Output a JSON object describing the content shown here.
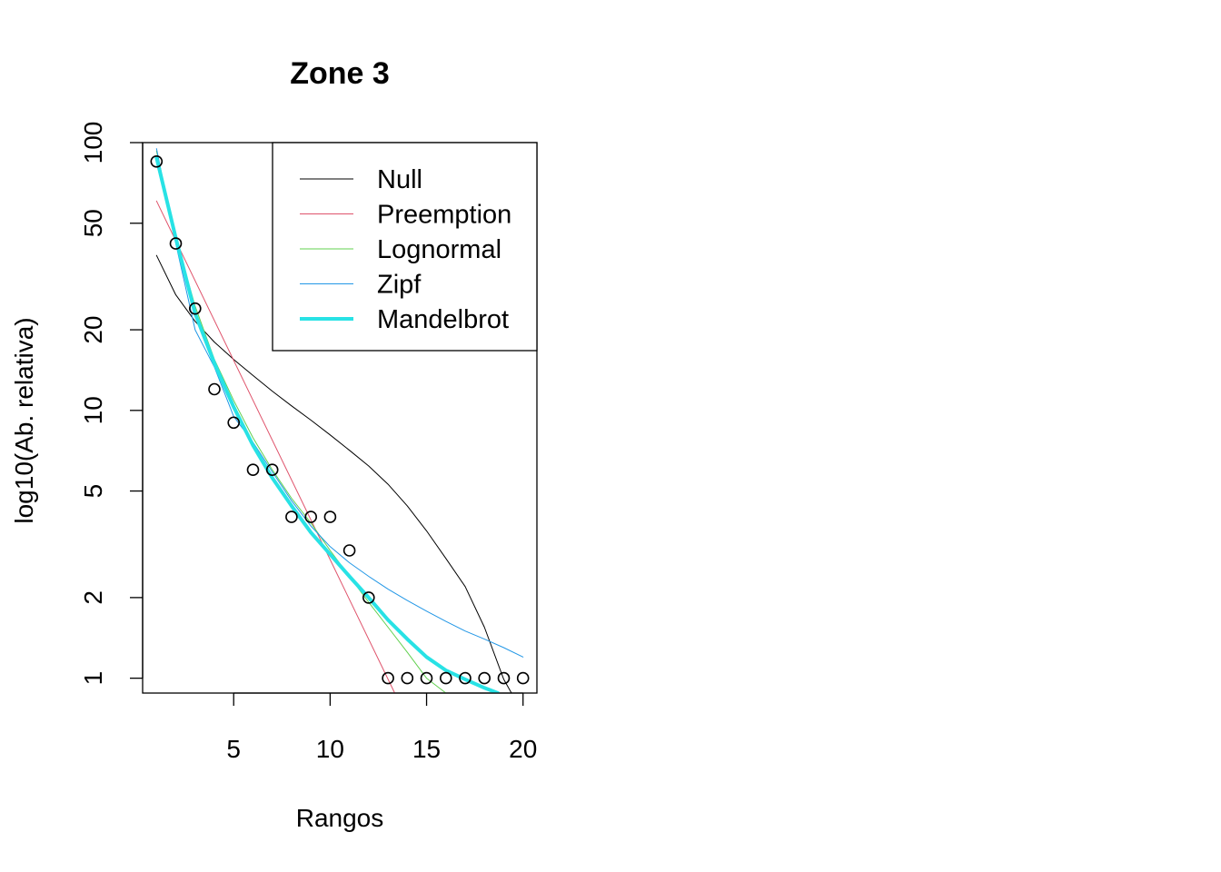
{
  "chart_data": {
    "type": "scatter",
    "title": "Zone 3",
    "xlabel": "Rangos",
    "ylabel": "log10(Ab. relativa)",
    "xlim": [
      0.28,
      20.72
    ],
    "ylim": [
      0.88,
      100
    ],
    "y_scale": "log",
    "x_ticks": [
      5,
      10,
      15,
      20
    ],
    "x_tick_labels": [
      "5",
      "10",
      "15",
      "20"
    ],
    "y_ticks": [
      1,
      2,
      5,
      10,
      20,
      50,
      100
    ],
    "y_tick_labels": [
      "1",
      "2",
      "5",
      "10",
      "20",
      "50",
      "100"
    ],
    "grid": false,
    "legend_position": "top-right",
    "observed": {
      "x": [
        1,
        2,
        3,
        4,
        5,
        6,
        7,
        8,
        9,
        10,
        11,
        12,
        13,
        14,
        15,
        16,
        17,
        18,
        19,
        20
      ],
      "y": [
        85,
        42,
        24,
        12,
        9,
        6,
        6,
        4,
        4,
        4,
        3,
        2,
        1,
        1,
        1,
        1,
        1,
        1,
        1,
        1
      ]
    },
    "series": [
      {
        "name": "Null",
        "color": "#000000",
        "width": 1,
        "x": [
          1,
          2,
          3,
          4,
          5,
          6,
          7,
          8,
          9,
          10,
          11,
          12,
          13,
          14,
          15,
          16,
          17,
          18,
          19,
          19.4
        ],
        "y": [
          37.9,
          27.0,
          21.5,
          18.0,
          15.5,
          13.5,
          11.8,
          10.4,
          9.2,
          8.1,
          7.1,
          6.2,
          5.3,
          4.4,
          3.55,
          2.8,
          2.2,
          1.55,
          0.99,
          0.88
        ]
      },
      {
        "name": "Preemption",
        "color": "#DF536B",
        "width": 1,
        "x": [
          1,
          13.35
        ],
        "y": [
          60.5,
          0.88
        ]
      },
      {
        "name": "Lognormal",
        "color": "#61D04F",
        "width": 1,
        "x": [
          1,
          2,
          3,
          4,
          5,
          6,
          7,
          8,
          9,
          10,
          11,
          12,
          13,
          14,
          15,
          16
        ],
        "y": [
          93,
          44,
          24.5,
          15.5,
          10.9,
          7.9,
          6.0,
          4.7,
          3.8,
          3.0,
          2.4,
          1.92,
          1.55,
          1.25,
          1.0,
          0.88
        ]
      },
      {
        "name": "Zipf",
        "color": "#2297E6",
        "width": 1,
        "x": [
          1,
          2,
          3,
          4,
          5,
          6,
          7,
          8,
          9,
          10,
          11,
          12,
          13,
          14,
          15,
          16,
          17,
          18,
          19,
          20
        ],
        "y": [
          95,
          42,
          20,
          14.5,
          9.5,
          7.6,
          5.9,
          4.6,
          3.7,
          3.1,
          2.7,
          2.4,
          2.15,
          1.95,
          1.78,
          1.63,
          1.5,
          1.4,
          1.3,
          1.2
        ]
      },
      {
        "name": "Mandelbrot",
        "color": "#28E2E5",
        "width": 4,
        "x": [
          1,
          2,
          3,
          4,
          5,
          6,
          7,
          8,
          9,
          10,
          11,
          12,
          13,
          14,
          15,
          16,
          17,
          18,
          18.7
        ],
        "y": [
          88,
          44,
          23,
          15,
          10.3,
          7.4,
          5.6,
          4.4,
          3.5,
          2.9,
          2.4,
          2.0,
          1.65,
          1.4,
          1.2,
          1.07,
          0.99,
          0.92,
          0.88
        ]
      }
    ]
  }
}
